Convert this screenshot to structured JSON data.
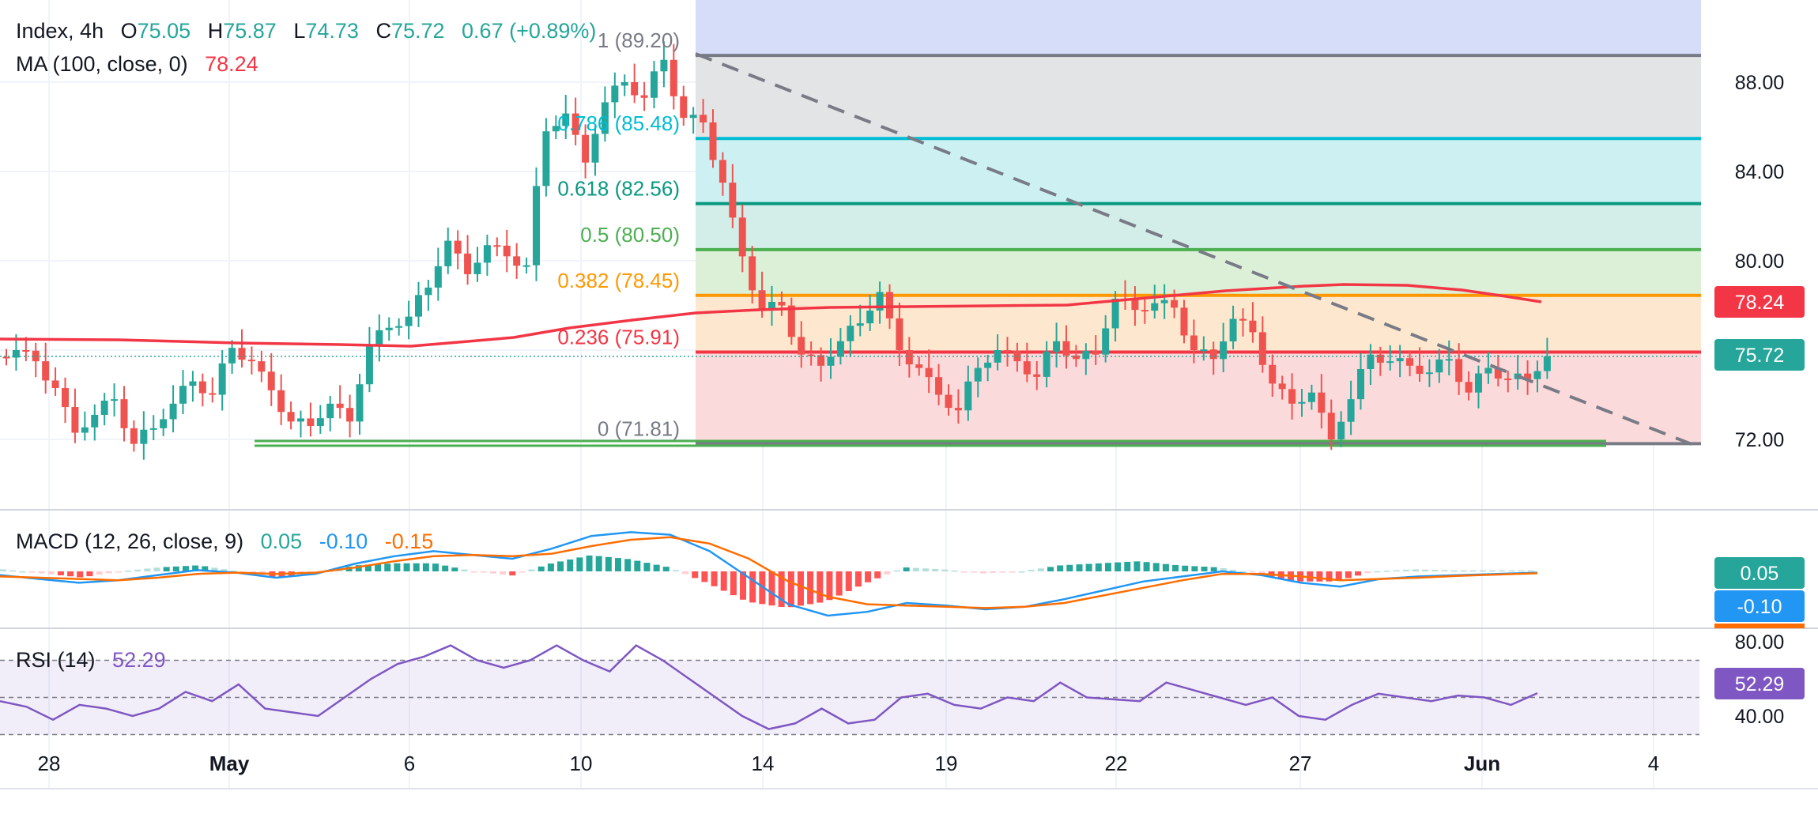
{
  "header": {
    "symbol": "Index, 4h",
    "o_label": "O",
    "o": "75.05",
    "h_label": "H",
    "h": "75.87",
    "l_label": "L",
    "l": "74.73",
    "c_label": "C",
    "c": "75.72",
    "change": "0.67 (+0.89%)",
    "ma_label": "MA (100, close, 0)",
    "ma_value": "78.24",
    "macd_label": "MACD (12, 26, close, 9)",
    "macd_hist": "0.05",
    "macd_line": "-0.10",
    "macd_signal": "-0.15",
    "rsi_label": "RSI (14)",
    "rsi_value": "52.29"
  },
  "colors": {
    "up": "#26a69a",
    "down": "#ef5350",
    "ma": "#f23645",
    "trend": "#787b86",
    "support": "#4caf50",
    "macd_line": "#2196f3",
    "macd_signal": "#ff6d00",
    "rsi": "#7e57c2",
    "text": "#131722"
  },
  "chart_data": [
    {
      "type": "candlestick",
      "title": "Index, 4h",
      "x_tick_labels": [
        "28",
        "May",
        "6",
        "10",
        "14",
        "19",
        "22",
        "27",
        "Jun",
        "4"
      ],
      "y_tick_labels": [
        "88.00",
        "84.00",
        "80.00",
        "72.00"
      ],
      "ylim": [
        70.0,
        90.5
      ],
      "price_badge": "75.72",
      "ma_badge": "78.24",
      "fib_levels": [
        {
          "label": "1 (89.20)",
          "value": 89.2
        },
        {
          "label": "0.786 (85.48)",
          "value": 85.48
        },
        {
          "label": "0.618 (82.56)",
          "value": 82.56
        },
        {
          "label": "0.5 (80.50)",
          "value": 80.5
        },
        {
          "label": "0.382 (78.45)",
          "value": 78.45
        },
        {
          "label": "0.236 (75.91)",
          "value": 75.91
        },
        {
          "label": "0 (71.81)",
          "value": 71.81
        }
      ],
      "support_level": 72.0,
      "close_path": [
        76.0,
        75.5,
        74.3,
        72.3,
        73.1,
        73.8,
        71.8,
        72.5,
        73.6,
        74.6,
        74.0,
        76.1,
        75.5,
        74.2,
        72.8,
        72.6,
        73.6,
        72.8,
        76.2,
        77.0,
        77.5,
        78.8,
        80.9,
        79.4,
        80.7,
        80.2,
        79.8,
        85.8,
        86.6,
        84.4,
        87.1,
        88.0,
        87.3,
        89.0,
        86.4,
        86.2,
        83.5,
        80.2,
        77.8,
        78.0,
        75.8,
        75.3,
        76.4,
        77.2,
        78.6,
        76.0,
        75.2,
        74.0,
        73.3,
        75.2,
        76.0,
        75.5,
        74.8,
        76.4,
        75.6,
        75.8,
        78.3,
        77.8,
        78.1,
        77.9,
        76.0,
        75.6,
        77.4,
        76.8,
        74.5,
        73.6,
        74.1,
        72.0,
        73.8,
        75.8,
        75.5,
        75.3,
        75.0,
        75.6,
        74.1,
        75.2,
        74.7,
        74.7,
        75.72
      ]
    },
    {
      "type": "macd",
      "title": "MACD (12, 26, close, 9)",
      "hist_badge": "0.05",
      "macd_badge": "-0.10",
      "macd_path": [
        -0.3,
        -0.6,
        -0.9,
        -0.7,
        -0.3,
        0.1,
        -0.1,
        -0.5,
        -0.2,
        0.6,
        1.2,
        1.6,
        1.3,
        1.0,
        1.8,
        2.8,
        3.1,
        2.9,
        1.6,
        -0.5,
        -2.6,
        -3.5,
        -3.2,
        -2.5,
        -2.7,
        -3.0,
        -2.8,
        -2.2,
        -1.5,
        -0.8,
        -0.4,
        0.0,
        -0.3,
        -0.9,
        -1.2,
        -0.6,
        -0.4,
        -0.3,
        -0.2,
        -0.1
      ],
      "signal_path": [
        -0.4,
        -0.5,
        -0.6,
        -0.7,
        -0.5,
        -0.2,
        -0.1,
        -0.2,
        -0.1,
        0.3,
        0.8,
        1.2,
        1.3,
        1.2,
        1.4,
        2.0,
        2.5,
        2.7,
        2.2,
        1.0,
        -0.8,
        -2.0,
        -2.6,
        -2.7,
        -2.8,
        -2.9,
        -2.8,
        -2.5,
        -1.9,
        -1.3,
        -0.7,
        -0.2,
        -0.2,
        -0.4,
        -0.7,
        -0.6,
        -0.5,
        -0.35,
        -0.25,
        -0.15
      ]
    },
    {
      "type": "line",
      "title": "RSI (14)",
      "y_tick_labels": [
        "80.00",
        "40.00"
      ],
      "ylim": [
        30,
        85
      ],
      "value_badge": "52.29",
      "rsi_path": [
        48,
        45,
        38,
        46,
        44,
        40,
        44,
        53,
        48,
        57,
        44,
        42,
        40,
        50,
        60,
        68,
        72,
        78,
        70,
        66,
        70,
        78,
        70,
        64,
        78,
        70,
        60,
        50,
        40,
        33,
        36,
        44,
        36,
        38,
        50,
        52,
        46,
        44,
        50,
        48,
        58,
        50,
        49,
        48,
        58,
        54,
        50,
        46,
        50,
        40,
        38,
        46,
        52,
        50,
        48,
        51,
        50,
        46,
        52.29
      ]
    }
  ]
}
